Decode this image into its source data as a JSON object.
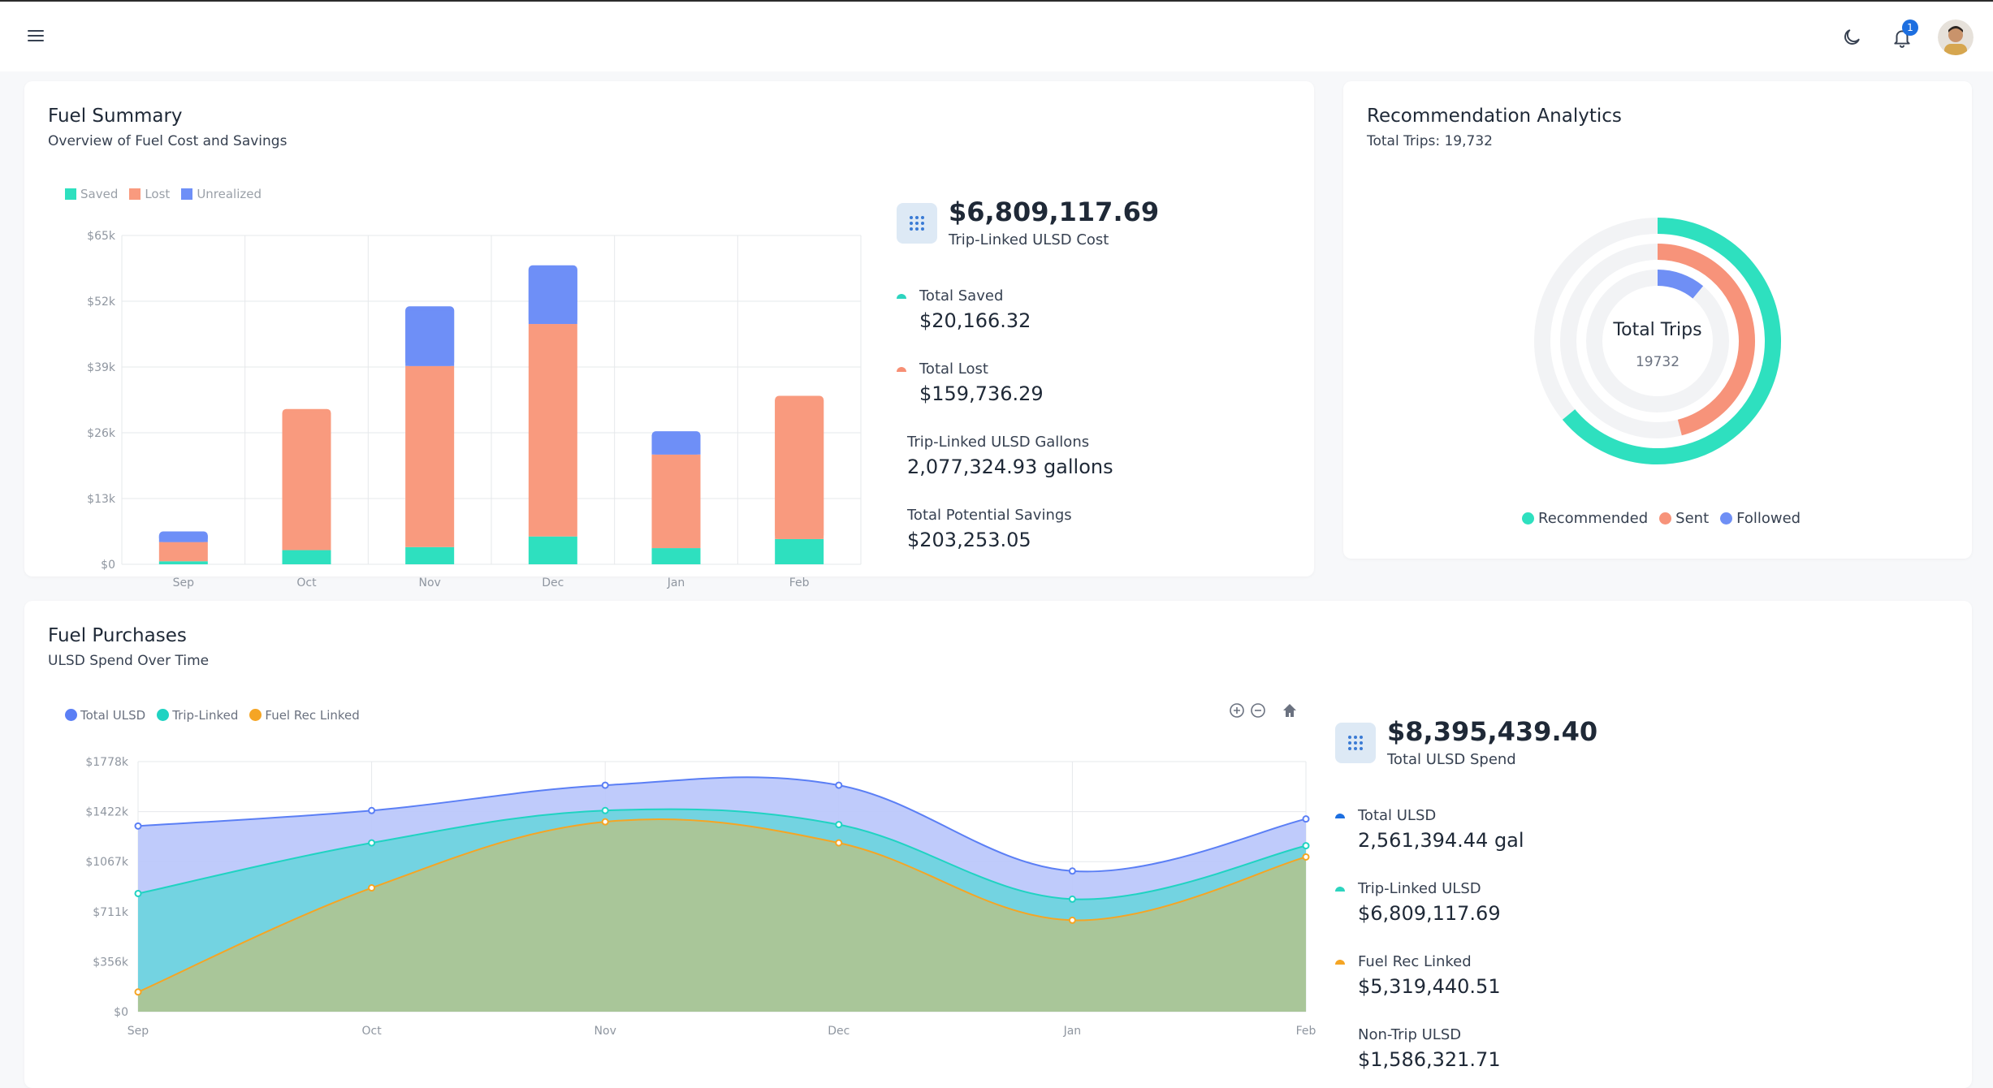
{
  "topbar": {
    "notification_count": "1"
  },
  "fuel_summary": {
    "title": "Fuel Summary",
    "subtitle": "Overview of Fuel Cost and Savings",
    "headline_value": "$6,809,117.69",
    "headline_label": "Trip-Linked ULSD Cost",
    "stats": [
      {
        "label": "Total Saved",
        "value": "$20,166.32",
        "color": "#2dd4bf"
      },
      {
        "label": "Total Lost",
        "value": "$159,736.29",
        "color": "#f78f74"
      },
      {
        "label": "Trip-Linked ULSD Gallons",
        "value": "2,077,324.93 gallons"
      },
      {
        "label": "Total Potential Savings",
        "value": "$203,253.05"
      }
    ]
  },
  "recommendation_analytics": {
    "title": "Recommendation Analytics",
    "subtitle": "Total Trips: 19,732",
    "center_title": "Total Trips",
    "center_value": "19732",
    "legend": [
      {
        "label": "Recommended",
        "color": "#2ee0bf"
      },
      {
        "label": "Sent",
        "color": "#f7937a"
      },
      {
        "label": "Followed",
        "color": "#6f8ff5"
      }
    ]
  },
  "fuel_purchases": {
    "title": "Fuel Purchases",
    "subtitle": "ULSD Spend Over Time",
    "headline_value": "$8,395,439.40",
    "headline_label": "Total ULSD Spend",
    "stats": [
      {
        "label": "Total ULSD",
        "value": "2,561,394.44 gal",
        "color": "#1d6fe0"
      },
      {
        "label": "Trip-Linked ULSD",
        "value": "$6,809,117.69",
        "color": "#2dd4bf"
      },
      {
        "label": "Fuel Rec Linked",
        "value": "$5,319,440.51",
        "color": "#f5a524"
      },
      {
        "label": "Non-Trip ULSD",
        "value": "$1,586,321.71"
      }
    ]
  },
  "chart_data": [
    {
      "type": "bar",
      "stacked": true,
      "categories": [
        "Sep",
        "Oct",
        "Nov",
        "Dec",
        "Jan",
        "Feb"
      ],
      "series": [
        {
          "name": "Saved",
          "color": "#2ee0bf",
          "values": [
            600,
            2800,
            3400,
            5500,
            3200,
            5000
          ]
        },
        {
          "name": "Lost",
          "color": "#f99a7e",
          "values": [
            3800,
            27900,
            35800,
            42000,
            18500,
            28300
          ]
        },
        {
          "name": "Unrealized",
          "color": "#6e8ff7",
          "values": [
            2100,
            0,
            11800,
            11600,
            4600,
            0
          ]
        }
      ],
      "y_ticks": [
        "$0",
        "$13k",
        "$26k",
        "$39k",
        "$52k",
        "$65k"
      ],
      "ylim": [
        0,
        65000
      ],
      "grid": true,
      "legend_position": "top-left"
    },
    {
      "type": "area",
      "categories": [
        "Sep",
        "Oct",
        "Nov",
        "Dec",
        "Jan",
        "Feb"
      ],
      "series": [
        {
          "name": "Total ULSD",
          "color": "#5b7ff5",
          "fill": "#bcc8fb",
          "values": [
            1320000,
            1430000,
            1610000,
            1610000,
            1000000,
            1370000
          ]
        },
        {
          "name": "Trip-Linked",
          "color": "#20d3c2",
          "fill": "#6fd3df",
          "values": [
            840000,
            1200000,
            1430000,
            1330000,
            800000,
            1180000
          ]
        },
        {
          "name": "Fuel Rec Linked",
          "color": "#f5a524",
          "fill": "#acc595",
          "values": [
            140000,
            880000,
            1350000,
            1200000,
            650000,
            1100000
          ]
        }
      ],
      "y_ticks": [
        "$0",
        "$356k",
        "$711k",
        "$1067k",
        "$1422k",
        "$1778k"
      ],
      "ylim": [
        0,
        1778000
      ],
      "grid": true,
      "legend_position": "top-left"
    },
    {
      "type": "pie",
      "variant": "radial-rings",
      "series": [
        {
          "name": "Recommended",
          "color": "#2ee0bf",
          "fraction": 0.64
        },
        {
          "name": "Sent",
          "color": "#f7937a",
          "fraction": 0.46
        },
        {
          "name": "Followed",
          "color": "#6f8ff5",
          "fraction": 0.11
        }
      ]
    }
  ]
}
